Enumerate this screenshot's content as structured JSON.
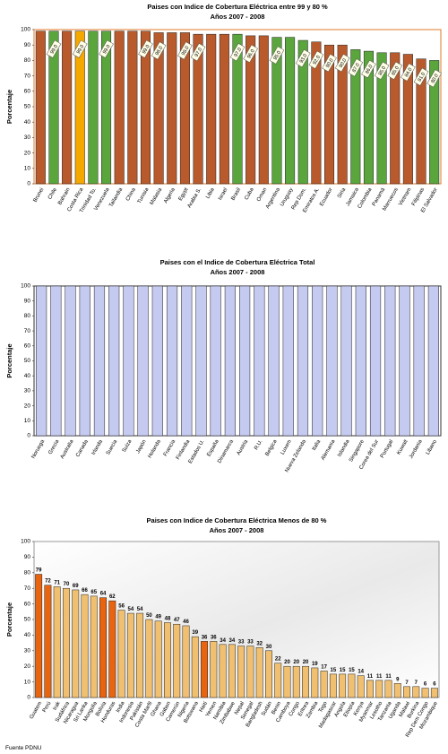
{
  "chart_data": [
    {
      "type": "bar",
      "title": "Paises con Indice de Cobertura Eléctrica entre 99 y 80 %",
      "subtitle": "Años 2007 -  2008",
      "y_label": "Porcentaje",
      "categories": [
        "Brunei",
        "Chile",
        "Bahrain",
        "Costa Rica",
        "Trinidad To.",
        "Venezuela",
        "Tailandia",
        "China",
        "Tunisia",
        "Malasia",
        "Algeria",
        "Egypt",
        "Arabia S.",
        "Libia",
        "Israel",
        "Brasil",
        "Cuba",
        "Oman",
        "Argentina",
        "Uruguay",
        "Rep Dom.",
        "Emiratos A.",
        "Ecuador",
        "Siria",
        "Jamaica",
        "Colombia",
        "Panamá",
        "Marruecos",
        "Vietnam",
        "Filipinas",
        "El Salvador"
      ],
      "values": [
        99,
        99,
        99,
        99,
        99,
        99,
        99,
        99,
        99,
        98,
        98,
        98,
        97,
        97,
        97,
        97,
        96,
        96,
        95,
        95,
        93,
        92,
        90,
        90,
        87,
        86,
        85,
        85,
        84,
        81,
        80
      ],
      "value_labels": [
        null,
        "99.0",
        null,
        "99.0",
        null,
        "99.0",
        null,
        null,
        "99.0",
        "98.0",
        null,
        "98.0",
        "97.0",
        null,
        null,
        "97.0",
        "96.0",
        null,
        "95.0",
        null,
        "93.0",
        "92.0",
        "90.0",
        "90.0",
        "87.0",
        "86.0",
        "85.0",
        "85.0",
        "84.0",
        "81.0",
        "80.0"
      ],
      "colors": [
        "#b85a2c",
        "#5aa53c",
        "#b85a2c",
        "#f5a800",
        "#5aa53c",
        "#5aa53c",
        "#b85a2c",
        "#b85a2c",
        "#b85a2c",
        "#b85a2c",
        "#b85a2c",
        "#b85a2c",
        "#b85a2c",
        "#b85a2c",
        "#b85a2c",
        "#5aa53c",
        "#b85a2c",
        "#b85a2c",
        "#5aa53c",
        "#5aa53c",
        "#5aa53c",
        "#b85a2c",
        "#b85a2c",
        "#b85a2c",
        "#5aa53c",
        "#5aa53c",
        "#5aa53c",
        "#b85a2c",
        "#b85a2c",
        "#b85a2c",
        "#5aa53c"
      ],
      "frame_color": "#e07a2a",
      "ylim": [
        0,
        100
      ],
      "yticks": [
        0,
        10,
        20,
        30,
        40,
        50,
        60,
        70,
        80,
        90,
        100
      ]
    },
    {
      "type": "bar",
      "title": "Paises con  el Indice de Cobertura Eléctrica  Total",
      "subtitle": "Años 2007 - 2008",
      "y_label": "Porcentaje",
      "categories": [
        "Noruega",
        "Grecia",
        "Australia",
        "Canada",
        "Irlanda",
        "Suecia",
        "Suiza",
        "Japón",
        "Holanda",
        "Francia",
        "Finlandia",
        "Estados U.",
        "España",
        "Dinamarca",
        "Austria",
        "R.U.",
        "Belgica",
        "Luxem",
        "Nueva Zelanda",
        "Italia",
        "Alemania",
        "Islandia",
        "Singapore",
        "Corea del Sur",
        "Portugal",
        "Kuwait",
        "Jordania",
        "Libano"
      ],
      "values": [
        100,
        100,
        100,
        100,
        100,
        100,
        100,
        100,
        100,
        100,
        100,
        100,
        100,
        100,
        100,
        100,
        100,
        100,
        100,
        100,
        100,
        100,
        100,
        100,
        100,
        100,
        100,
        100
      ],
      "color": "#c5caf0",
      "frame_color": "#333333",
      "ylim": [
        0,
        100
      ],
      "yticks": [
        0,
        10,
        20,
        30,
        40,
        50,
        60,
        70,
        80,
        90,
        100
      ]
    },
    {
      "type": "bar",
      "title": "Paises con Indice de Cobertura Eléctrica Menos de 80 %",
      "subtitle": "Años 2007 -  2008",
      "y_label": "Porcentaje",
      "categories": [
        "Guatem",
        "Perú",
        "Irak",
        "Sudáfrica",
        "Nicaragua",
        "Sri Lanka",
        "Mongolia",
        "Bolivia",
        "Honduras",
        "India",
        "Indonesia",
        "Pakistán",
        "Costa Marfil",
        "Ghana",
        "Gabon",
        "Camerún",
        "Nigeria",
        "Botswana",
        "Haití",
        "Yemen",
        "Namibia",
        "Zimbabwe",
        "Nepal",
        "Senegal",
        "Bangladesh",
        "Sudán",
        "Benin",
        "Camboya",
        "Congo",
        "Eritrea",
        "Zambia",
        "Togo",
        "Madagascar",
        "Angola",
        "Etiopía",
        "Kenya",
        "Myanmar",
        "Lesotho",
        "Tanzania",
        "Uganda",
        "Malawi",
        "Burkina",
        "Rep Dem Congo",
        "Mozambique"
      ],
      "values": [
        79,
        72,
        71,
        70,
        69,
        66,
        65,
        64,
        62,
        56,
        54,
        54,
        50,
        49,
        48,
        47,
        46,
        39,
        36,
        36,
        34,
        34,
        33,
        33,
        32,
        30,
        22,
        20,
        20,
        20,
        19,
        17,
        15,
        15,
        15,
        14,
        11,
        11,
        11,
        9,
        7,
        7,
        6,
        6
      ],
      "colors": [
        "#e8640e",
        "#e8640e",
        "#f0c070",
        "#f0c070",
        "#f0c070",
        "#f0c070",
        "#f0c070",
        "#e8640e",
        "#e8640e",
        "#f0c070",
        "#f0c070",
        "#f0c070",
        "#f0c070",
        "#f0c070",
        "#f0c070",
        "#f0c070",
        "#f0c070",
        "#f0c070",
        "#e8640e",
        "#f0c070",
        "#f0c070",
        "#f0c070",
        "#f0c070",
        "#f0c070",
        "#f0c070",
        "#f0c070",
        "#f0c070",
        "#f0c070",
        "#f0c070",
        "#f0c070",
        "#f0c070",
        "#f0c070",
        "#f0c070",
        "#f0c070",
        "#f0c070",
        "#f0c070",
        "#f0c070",
        "#f0c070",
        "#f0c070",
        "#f0c070",
        "#f0c070",
        "#f0c070",
        "#f0c070",
        "#f0c070"
      ],
      "show_values": true,
      "frame_color": "#999999",
      "ylim": [
        0,
        100
      ],
      "yticks": [
        0,
        10,
        20,
        30,
        40,
        50,
        60,
        70,
        80,
        90,
        100
      ]
    }
  ],
  "source": "Fuente PDNU"
}
